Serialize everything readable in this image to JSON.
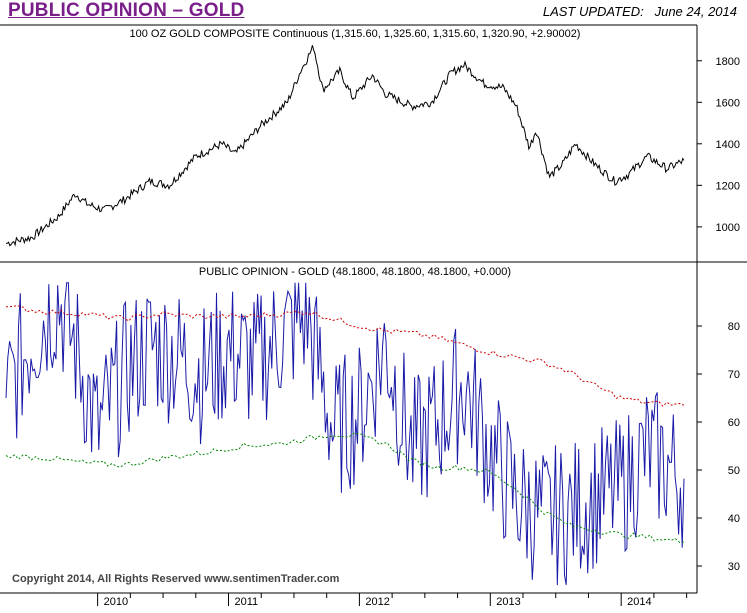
{
  "header": {
    "title": "PUBLIC OPINION – GOLD",
    "updated_label": "LAST UPDATED:",
    "updated_date": "June 24, 2014"
  },
  "footer": {
    "copyright": "Copyright 2014, All Rights Reserved  www.sentimenTrader.com"
  },
  "chart_data": [
    {
      "type": "line",
      "title": "100 OZ GOLD COMPOSITE Continuous (1,315.60, 1,325.60, 1,315.60, 1,320.90, +2.90002)",
      "x_axis": {
        "ticks": [
          "2010",
          "2011",
          "2012",
          "2013",
          "2014"
        ]
      },
      "y_axis": {
        "ticks": [
          1000,
          1200,
          1400,
          1600,
          1800
        ],
        "ylim": [
          850,
          1900
        ]
      },
      "series": [
        {
          "x": [
            2009.3,
            2009.5,
            2009.7,
            2009.83,
            2009.92,
            2010.05,
            2010.2,
            2010.4,
            2010.55,
            2010.75,
            2010.95,
            2011.05,
            2011.25,
            2011.45,
            2011.55,
            2011.65,
            2011.72,
            2011.85,
            2011.95,
            2012.1,
            2012.2,
            2012.4,
            2012.55,
            2012.7,
            2012.8,
            2012.95,
            2013.1,
            2013.2,
            2013.3,
            2013.35,
            2013.45,
            2013.55,
            2013.65,
            2013.8,
            2013.95,
            2014.05,
            2014.2,
            2014.35,
            2014.48
          ],
          "values": [
            920,
            950,
            1050,
            1160,
            1110,
            1080,
            1130,
            1220,
            1200,
            1340,
            1400,
            1350,
            1490,
            1600,
            1750,
            1870,
            1660,
            1750,
            1620,
            1730,
            1640,
            1580,
            1600,
            1740,
            1780,
            1690,
            1670,
            1580,
            1380,
            1470,
            1240,
            1300,
            1400,
            1300,
            1220,
            1250,
            1340,
            1280,
            1320
          ]
        }
      ]
    },
    {
      "type": "line",
      "title": "PUBLIC OPINION - GOLD (48.1800, 48.1800, 48.1800, +0.000)",
      "x_axis": {
        "ticks": [
          "2010",
          "2011",
          "2012",
          "2013",
          "2014"
        ]
      },
      "y_axis": {
        "ticks": [
          30,
          40,
          50,
          60,
          70,
          80
        ],
        "ylim": [
          25,
          90
        ]
      },
      "series": [
        {
          "x": [
            2009.3,
            2009.5,
            2009.7,
            2009.85,
            2010.0,
            2010.2,
            2010.4,
            2010.6,
            2010.8,
            2011.0,
            2011.2,
            2011.4,
            2011.6,
            2011.8,
            2012.0,
            2012.2,
            2012.4,
            2012.6,
            2012.8,
            2013.0,
            2013.2,
            2013.4,
            2013.6,
            2013.8,
            2014.0,
            2014.2,
            2014.48
          ],
          "values": [
            65,
            78,
            86,
            74,
            58,
            70,
            76,
            74,
            70,
            75,
            72,
            78,
            82,
            58,
            62,
            76,
            54,
            60,
            68,
            54,
            44,
            40,
            41,
            44,
            46,
            54,
            48.18
          ]
        },
        {
          "x": [
            2009.3,
            2009.6,
            2009.9,
            2010.2,
            2010.5,
            2010.8,
            2011.1,
            2011.4,
            2011.6,
            2011.8,
            2012.0,
            2012.2,
            2012.4,
            2012.6,
            2012.8,
            2013.0,
            2013.2,
            2013.4,
            2013.6,
            2013.8,
            2014.0,
            2014.2,
            2014.48
          ],
          "values": [
            84,
            83,
            82.5,
            81.5,
            82.5,
            82,
            82,
            82.5,
            83,
            81.5,
            80,
            79,
            78.5,
            77.5,
            76,
            74.5,
            73.5,
            72.5,
            70.5,
            67.5,
            65,
            64,
            63.5
          ]
        },
        {
          "x": [
            2009.3,
            2009.6,
            2009.9,
            2010.2,
            2010.5,
            2010.8,
            2011.1,
            2011.4,
            2011.6,
            2011.8,
            2012.0,
            2012.2,
            2012.4,
            2012.6,
            2012.8,
            2013.0,
            2013.2,
            2013.4,
            2013.6,
            2013.8,
            2014.0,
            2014.2,
            2014.48
          ],
          "values": [
            53,
            52.5,
            51.5,
            51,
            52.5,
            53.5,
            55,
            55.5,
            56.5,
            57.5,
            57,
            55.5,
            52,
            50.5,
            50.5,
            49.5,
            46,
            41.5,
            38.5,
            37.5,
            36.5,
            36,
            35
          ]
        }
      ]
    }
  ],
  "colors": {
    "title": "#7a1f8a",
    "price_line": "#000000",
    "opinion_line": "#1a1aa8",
    "upper_band": "#cc0000",
    "lower_band": "#008800"
  }
}
